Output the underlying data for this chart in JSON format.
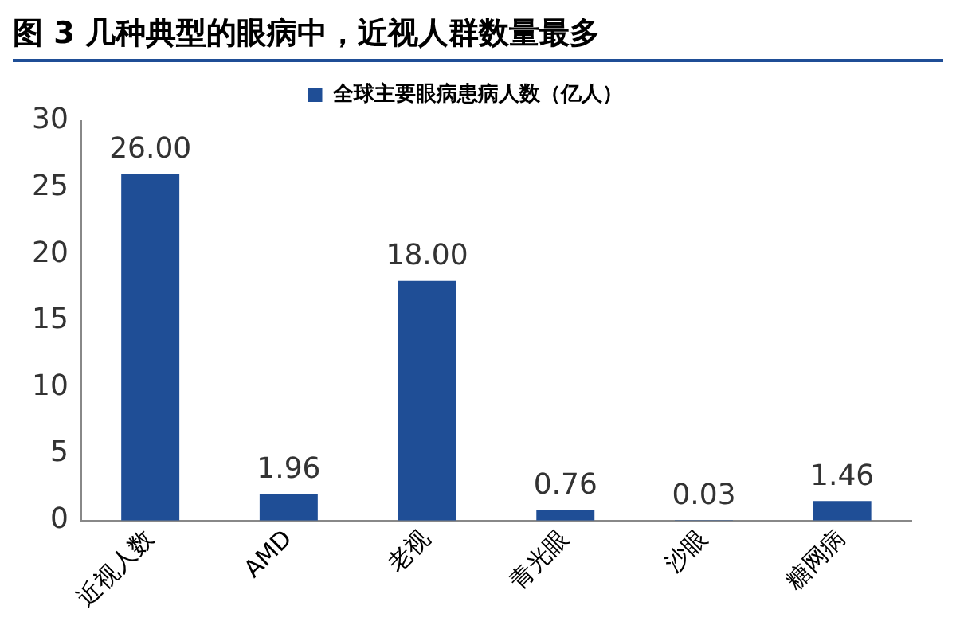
{
  "chart_data": {
    "type": "bar",
    "title": "图 3 几种典型的眼病中，近视人群数量最多",
    "categories": [
      "近视人数",
      "AMD",
      "老视",
      "青光眼",
      "沙眼",
      "糖网病"
    ],
    "series": [
      {
        "name": "全球主要眼病患病人数（亿人）",
        "color": "#1f4e96",
        "values": [
          26,
          1.96,
          18,
          0.76,
          0.03,
          1.46
        ],
        "value_labels": [
          "26.00",
          "1.96",
          "18.00",
          "0.76",
          "0.03",
          "1.46"
        ]
      }
    ],
    "ylim": [
      0,
      30
    ],
    "yticks": [
      0,
      5,
      10,
      15,
      20,
      25,
      30
    ],
    "grid": false,
    "legend": "top"
  }
}
